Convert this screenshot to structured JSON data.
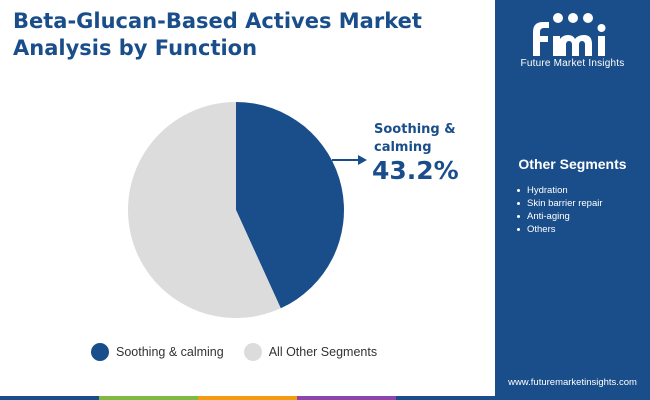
{
  "header": {
    "title_line1": "Beta-Glucan-Based Actives Market",
    "title_line2": "Analysis by Function"
  },
  "brand": {
    "logo_text": "Future Market Insights",
    "website": "www.futuremarketinsights.com",
    "color": "#1a4e8a"
  },
  "sidebar": {
    "title": "Other Segments",
    "items": [
      "Hydration",
      "Skin barrier repair",
      "Anti-aging",
      "Others"
    ]
  },
  "callout": {
    "label": "Soothing & calming",
    "value": "43.2%"
  },
  "chart_data": {
    "type": "pie",
    "title": "Beta-Glucan-Based Actives Market Analysis by Function",
    "slices": [
      {
        "label": "Soothing & calming",
        "value": 43.2,
        "color": "#1a4e8a"
      },
      {
        "label": "All Other Segments",
        "value": 56.8,
        "color": "#dcdcdc"
      }
    ],
    "legend_position": "bottom"
  },
  "bottom_bar_colors": [
    "#1a4e8a",
    "#7fba42",
    "#f39c12",
    "#8e44ad",
    "#1a4e8a"
  ]
}
